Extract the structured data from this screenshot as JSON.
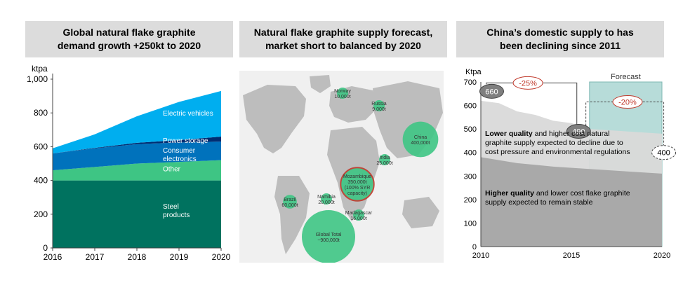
{
  "panels": [
    {
      "title_lines": [
        "Global natural flake graphite",
        "demand growth +250kt to 2020"
      ]
    },
    {
      "title_lines": [
        "Natural flake graphite supply forecast,",
        "market short to balanced by 2020"
      ]
    },
    {
      "title_lines": [
        "China’s domestic supply to has",
        "been declining since 2011"
      ]
    }
  ],
  "chart_data": [
    {
      "type": "area",
      "title": "Global natural flake graphite demand growth +250kt to 2020",
      "ylabel": "ktpa",
      "x": [
        2016,
        2017,
        2018,
        2019,
        2020
      ],
      "x_tick_labels": [
        "2016",
        "2017",
        "2018",
        "2019",
        "2020"
      ],
      "y_tick_labels": [
        "0",
        "200",
        "400",
        "600",
        "800",
        "1,000"
      ],
      "ylim": [
        0,
        1000
      ],
      "stacked": true,
      "series": [
        {
          "name": "Steel\nproducts",
          "label_lines": [
            "Steel",
            "products"
          ],
          "color": "#00725f",
          "values": [
            400,
            400,
            400,
            400,
            400
          ]
        },
        {
          "name": "Other",
          "label_lines": [
            "Other"
          ],
          "color": "#3ec584",
          "values": [
            60,
            80,
            100,
            110,
            120
          ]
        },
        {
          "name": "Consumer electronics",
          "label_lines": [
            "Consumer",
            "electronics"
          ],
          "color": "#0072bc",
          "values": [
            100,
            110,
            115,
            115,
            110
          ]
        },
        {
          "name": "Power storage",
          "label_lines": [
            "Power storage"
          ],
          "color": "#002d72",
          "values": [
            0,
            3,
            8,
            14,
            30
          ]
        },
        {
          "name": "Electric vehicles",
          "label_lines": [
            "Electric vehicles"
          ],
          "color": "#00aeef",
          "values": [
            30,
            80,
            157,
            226,
            270
          ]
        }
      ]
    },
    {
      "type": "bubble-map",
      "title": "Natural flake graphite supply forecast, market short to balanced by 2020",
      "points": [
        {
          "label_lines": [
            "Norway",
            "10,000t"
          ],
          "value": 10000
        },
        {
          "label_lines": [
            "Russia",
            "9,000t"
          ],
          "value": 9000
        },
        {
          "label_lines": [
            "China",
            "400,000t"
          ],
          "value": 400000
        },
        {
          "label_lines": [
            "India",
            "25,000t"
          ],
          "value": 25000
        },
        {
          "label_lines": [
            "Mozambique",
            "350,000t",
            "(100% SYR",
            "capacity)"
          ],
          "value": 350000,
          "highlight": true
        },
        {
          "label_lines": [
            "Namibia",
            "20,000t"
          ],
          "value": 20000
        },
        {
          "label_lines": [
            "Brazil",
            "60,000t"
          ],
          "value": 60000
        },
        {
          "label_lines": [
            "Madagascar",
            "16,000t"
          ],
          "value": 16000
        },
        {
          "label_lines": [
            "Global Total",
            "~900,000t"
          ],
          "value": 900000
        }
      ],
      "bubble_color": "#3ec584",
      "highlight_color": "#c0392b"
    },
    {
      "type": "area",
      "title": "China’s domestic supply to has been declining since 2011",
      "ylabel": "Ktpa",
      "xlim": [
        2010,
        2020
      ],
      "ylim": [
        0,
        700
      ],
      "x_tick_labels": [
        "2010",
        "2015",
        "2020"
      ],
      "y_tick_labels": [
        "0",
        "100",
        "200",
        "300",
        "400",
        "500",
        "600",
        "700"
      ],
      "forecast_label": "Forecast",
      "forecast_start": 2016,
      "series": [
        {
          "name": "Higher quality",
          "color": "#a6a6a6",
          "x": [
            2010,
            2012,
            2014,
            2016,
            2018,
            2020
          ],
          "values": [
            380,
            355,
            340,
            330,
            320,
            310
          ]
        },
        {
          "name": "Lower quality",
          "color": "#d9d9d9",
          "x": [
            2010,
            2011,
            2012,
            2013,
            2014,
            2015,
            2016,
            2018,
            2020
          ],
          "values": [
            620,
            610,
            575,
            560,
            535,
            525,
            500,
            490,
            480
          ]
        }
      ],
      "annotations": {
        "v660": "660",
        "v490": "490",
        "v400": "400",
        "pct1": "-25%",
        "pct2": "-20%",
        "lower_bold": "Lower quality",
        "lower_rest1": " and higher cost natural",
        "lower_line2": "graphite supply expected to decline due to",
        "lower_line3": "cost pressure and environmental regulations",
        "higher_bold": "Higher quality",
        "higher_rest1": " and lower cost flake graphite",
        "higher_line2": "supply expected to remain stable"
      },
      "colors": {
        "forecast": "#b7dcd9",
        "forecast_border": "#7fb8b3",
        "bubble_dark": "#7f7f7f",
        "pct_border": "#c0392b"
      }
    }
  ]
}
